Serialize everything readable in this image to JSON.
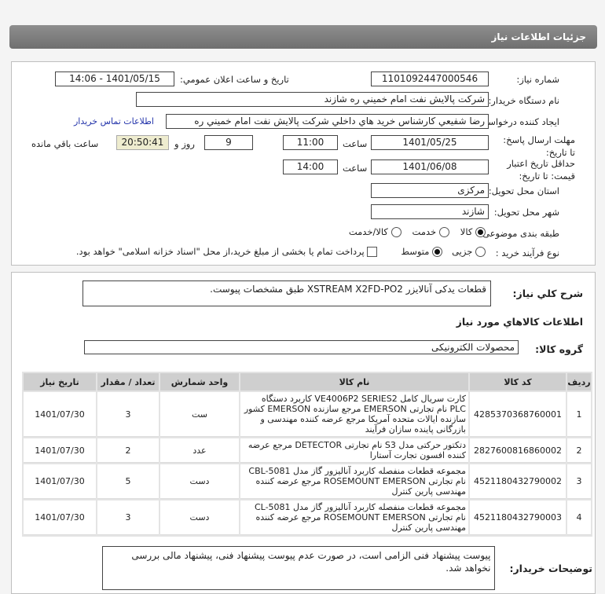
{
  "title": "جزئیات اطلاعات نیاز",
  "form": {
    "need_number_label": "شماره نیاز:",
    "need_number": "1101092447000546",
    "announce_label": "تاريخ و ساعت اعلان عمومي:",
    "announce_value": "1401/05/15 - 14:06",
    "buyer_label": "نام دستگاه خريدار:",
    "buyer": "شرکت پالايش نفت امام خميني  ره  شازند",
    "requester_label": "ايجاد کننده درخواست:",
    "requester": "رضا  شفيعي  کارشناس خريد هاي داخلي  شرکت پالايش نفت امام خميني  ره",
    "contact_link": "اطلاعات تماس خريدار",
    "deadline_label": "مهلت ارسال پاسخ: تا تاريخ:",
    "deadline_date": "1401/05/25",
    "time_label": "ساعت",
    "deadline_time": "11:00",
    "days": "9",
    "days_label": "روز و",
    "countdown": "20:50:41",
    "remaining_label": "ساعت باقي مانده",
    "validity_label": "حداقل تاريخ اعتبار قيمت: تا تاريخ:",
    "validity_date": "1401/06/08",
    "validity_time": "14:00",
    "province_label": "استان محل تحويل:",
    "province": "مرکزی",
    "city_label": "شهر محل تحويل:",
    "city": "شازند",
    "category_label": "طبقه بندی موضوعی:",
    "category_options": [
      "کالا",
      "خدمت",
      "کالا/خدمت"
    ],
    "category_selected": "کالا",
    "process_label": "نوع فرآيند خريد :",
    "process_options": [
      "جزیی",
      "متوسط"
    ],
    "process_selected": "متوسط",
    "payment_note": "پرداخت تمام يا بخشی از مبلغ خريد،از محل \"اسناد خزانه اسلامی\" خواهد بود."
  },
  "details": {
    "summary_label": "شرح کلي نياز:",
    "summary": "قطعات یدکی آنالایزر XSTREAM X2FD-PO2 طبق مشخصات پیوست.",
    "goods_header": "اطلاعات کالاهاي مورد نياز",
    "group_label": "گروه کالا:",
    "group": "محصولات الکترونیکی",
    "columns": [
      "رديف",
      "کد کالا",
      "نام کالا",
      "واحد شمارش",
      "تعداد / مقدار",
      "تاريخ نياز"
    ],
    "rows": [
      {
        "n": "1",
        "code": "4285370368760001",
        "name": "کارت سریال کامل VE4006P2 SERIES2 کاربرد دستگاه PLC نام تجارتی EMERSON مرجع سازنده EMERSON کشور سازنده ایالات متحده آمریکا مرجع عرضه کننده مهندسی و بازرگانی پاینده سازان فرآیند",
        "unit": "ست",
        "qty": "3",
        "date": "1401/07/30"
      },
      {
        "n": "2",
        "code": "2827600816860002",
        "name": "دتکتور حرکتی مدل S3 نام تجارتی DETECTOR مرجع عرضه کننده افسون تجارت آستارا",
        "unit": "عدد",
        "qty": "2",
        "date": "1401/07/30"
      },
      {
        "n": "3",
        "code": "4521180432790002",
        "name": "مجموعه قطعات منفصله کاربرد آنالیزور گاز مدل CBL-5081 نام تجارتی ROSEMOUNT EMERSON مرجع عرضه کننده مهندسی پارین کنترل",
        "unit": "دست",
        "qty": "5",
        "date": "1401/07/30"
      },
      {
        "n": "4",
        "code": "4521180432790003",
        "name": "مجموعه قطعات منفصله کاربرد آنالیزور گاز مدل CL-5081 نام تجارتی ROSEMOUNT EMERSON مرجع عرضه کننده مهندسی پارین کنترل",
        "unit": "دست",
        "qty": "3",
        "date": "1401/07/30"
      }
    ],
    "notes_label": "توضيحات خريدار:",
    "notes": "پیوست پیشنهاد فنی الزامی است، در صورت عدم پیوست پیشنهاد فنی، پیشنهاد مالی بررسی نخواهد شد."
  }
}
